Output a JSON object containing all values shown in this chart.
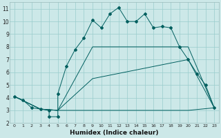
{
  "xlabel": "Humidex (Indice chaleur)",
  "ylabel": "",
  "xlim": [
    -0.5,
    23.5
  ],
  "ylim": [
    2,
    11.5
  ],
  "xticks": [
    0,
    1,
    2,
    3,
    4,
    5,
    6,
    7,
    8,
    9,
    10,
    11,
    12,
    13,
    14,
    15,
    16,
    17,
    18,
    19,
    20,
    21,
    22,
    23
  ],
  "yticks": [
    2,
    3,
    4,
    5,
    6,
    7,
    8,
    9,
    10,
    11
  ],
  "background_color": "#cce8e8",
  "grid_color": "#99cccc",
  "line_color": "#005f5f",
  "series1_x": [
    0,
    1,
    2,
    3,
    4,
    4,
    5,
    5,
    6,
    7,
    8,
    9,
    10,
    11,
    12,
    13,
    14,
    15,
    16,
    17,
    18,
    19,
    20,
    21,
    22,
    23
  ],
  "series1_y": [
    4.1,
    3.8,
    3.2,
    3.1,
    3.0,
    2.5,
    2.5,
    4.3,
    6.5,
    7.8,
    8.7,
    10.1,
    9.5,
    10.6,
    11.1,
    10.0,
    10.0,
    10.6,
    9.5,
    9.6,
    9.5,
    8.0,
    7.0,
    5.9,
    5.0,
    3.2
  ],
  "series2_x": [
    0,
    3,
    5,
    9,
    20,
    23
  ],
  "series2_y": [
    4.1,
    3.1,
    3.0,
    8.0,
    8.0,
    3.2
  ],
  "series3_x": [
    0,
    3,
    5,
    9,
    20,
    23
  ],
  "series3_y": [
    4.1,
    3.1,
    3.0,
    5.5,
    7.0,
    3.2
  ],
  "series4_x": [
    0,
    3,
    5,
    14,
    20,
    23
  ],
  "series4_y": [
    4.1,
    3.1,
    3.0,
    3.0,
    3.0,
    3.2
  ]
}
